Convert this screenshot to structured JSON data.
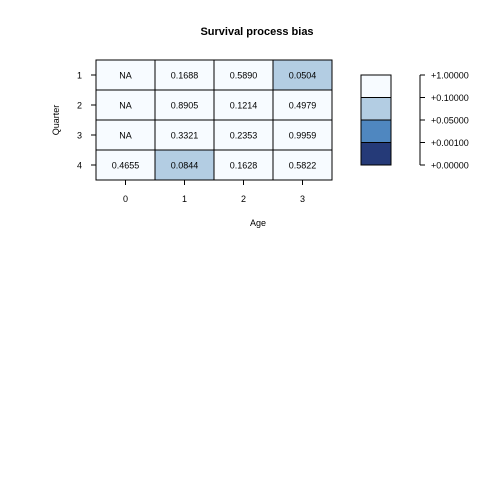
{
  "chart_data": {
    "type": "heatmap",
    "title": "Survival process bias",
    "xlabel": "Age",
    "ylabel": "Quarter",
    "x_categories": [
      "0",
      "1",
      "2",
      "3"
    ],
    "y_categories": [
      "1",
      "2",
      "3",
      "4"
    ],
    "cells": [
      [
        "NA",
        "0.1688",
        "0.5890",
        "0.0504"
      ],
      [
        "NA",
        "0.8905",
        "0.1214",
        "0.4979"
      ],
      [
        "NA",
        "0.3321",
        "0.2353",
        "0.9959"
      ],
      [
        "0.4655",
        "0.0844",
        "0.1628",
        "0.5822"
      ]
    ],
    "values": [
      [
        null,
        0.1688,
        0.589,
        0.0504
      ],
      [
        null,
        0.8905,
        0.1214,
        0.4979
      ],
      [
        null,
        0.3321,
        0.2353,
        0.9959
      ],
      [
        0.4655,
        0.0844,
        0.1628,
        0.5822
      ]
    ],
    "legend": {
      "placement": "right",
      "breaks": [
        1.0,
        0.1,
        0.05,
        0.001,
        0.0
      ],
      "labels": [
        "+1.00000",
        "+0.10000",
        "+0.05000",
        "+0.00100",
        "+0.00000"
      ],
      "colors": [
        "#f7fbff",
        "#b3cde3",
        "#4f87c0",
        "#253a78"
      ]
    },
    "grid": false
  }
}
